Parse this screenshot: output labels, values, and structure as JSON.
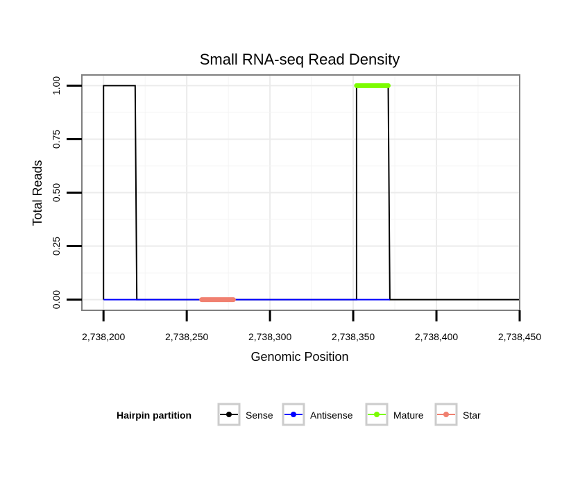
{
  "chart_data": {
    "type": "line",
    "title": "Small RNA-seq Read Density",
    "xlabel": "Genomic Position",
    "ylabel": "Total Reads",
    "xlim": [
      2738187,
      2738450
    ],
    "ylim": [
      -0.05,
      1.05
    ],
    "x_ticks": [
      2738200,
      2738250,
      2738300,
      2738350,
      2738400,
      2738450
    ],
    "x_tick_labels": [
      "2,738,200",
      "2,738,250",
      "2,738,300",
      "2,738,350",
      "2,738,400",
      "2,738,450"
    ],
    "y_ticks": [
      0,
      0.25,
      0.5,
      0.75,
      1.0
    ],
    "y_tick_labels": [
      "0.00",
      "0.25",
      "0.50",
      "0.75",
      "1.00"
    ],
    "grid": true,
    "legend": {
      "title": "Hairpin partition",
      "position": "bottom",
      "entries": [
        {
          "name": "Sense",
          "color": "#000000"
        },
        {
          "name": "Antisense",
          "color": "#0000ff"
        },
        {
          "name": "Mature",
          "color": "#7cfc00"
        },
        {
          "name": "Star",
          "color": "#f08070"
        }
      ]
    },
    "series": [
      {
        "name": "Sense",
        "color": "#000000",
        "style": "line",
        "x": [
          2738200,
          2738200,
          2738219,
          2738220,
          2738352,
          2738352,
          2738371,
          2738372,
          2738450
        ],
        "y": [
          0,
          1,
          1,
          0,
          0,
          1,
          1,
          0,
          0
        ]
      },
      {
        "name": "Antisense",
        "color": "#0000ff",
        "style": "line",
        "x": [
          2738200,
          2738220,
          2738352,
          2738372
        ],
        "y": [
          0,
          0,
          0,
          0
        ]
      },
      {
        "name": "Mature",
        "color": "#7cfc00",
        "style": "thick",
        "x": [
          2738352,
          2738371
        ],
        "y": [
          1,
          1
        ]
      },
      {
        "name": "Star",
        "color": "#f08070",
        "style": "thick",
        "x": [
          2738259,
          2738278
        ],
        "y": [
          0,
          0
        ]
      }
    ]
  }
}
